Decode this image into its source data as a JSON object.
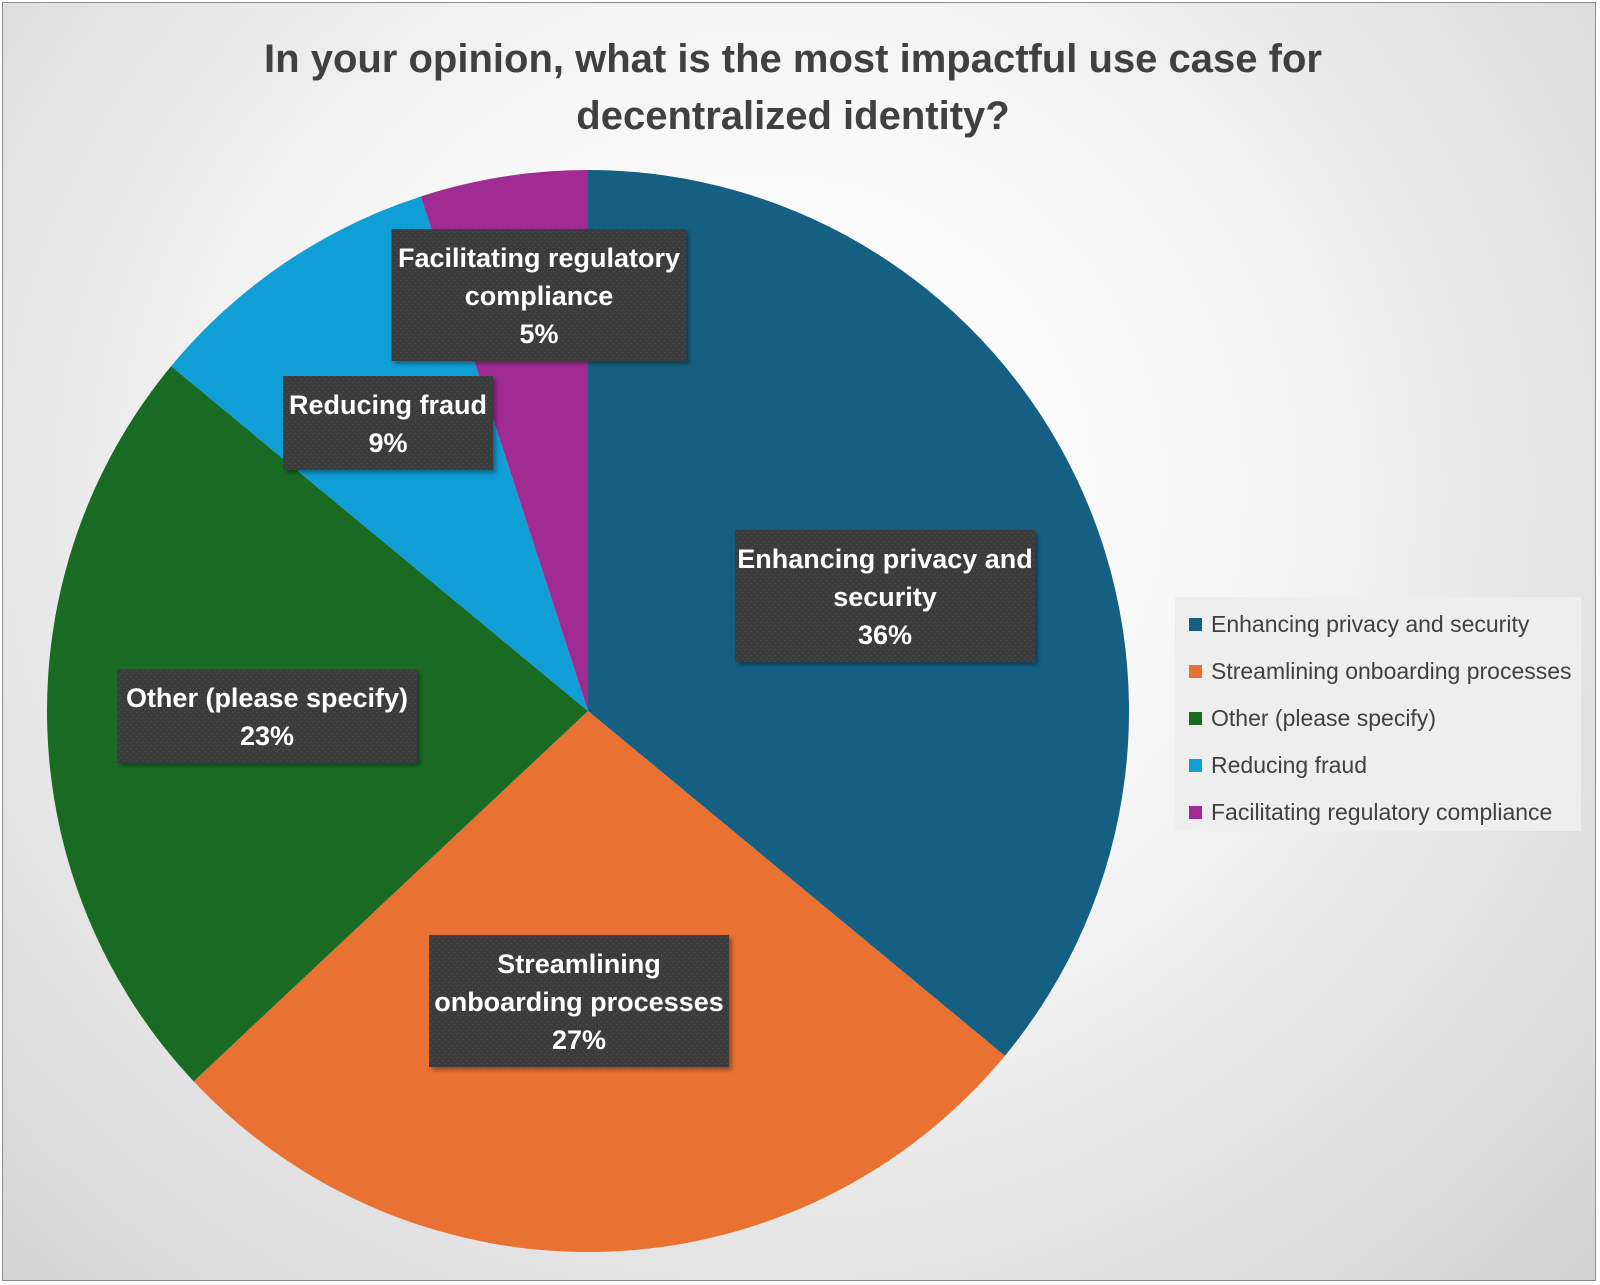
{
  "chart_data": {
    "type": "pie",
    "title": "In your opinion, what is the most impactful use case for decentralized identity?",
    "title_lines": [
      "In your opinion, what is the most impactful use case for",
      "decentralized identity?"
    ],
    "slices": [
      {
        "name": "Enhancing privacy and security",
        "value": 36,
        "label_lines": [
          "Enhancing privacy and",
          "security",
          "36%"
        ],
        "color": "#156082"
      },
      {
        "name": "Streamlining onboarding processes",
        "value": 27,
        "label_lines": [
          "Streamlining",
          "onboarding processes",
          "27%"
        ],
        "color": "#E97132"
      },
      {
        "name": "Other (please specify)",
        "value": 23,
        "label_lines": [
          "Other (please specify)",
          "23%"
        ],
        "color": "#196B24"
      },
      {
        "name": "Reducing fraud",
        "value": 9,
        "label_lines": [
          "Reducing fraud",
          "9%"
        ],
        "color": "#0F9ED5"
      },
      {
        "name": "Facilitating regulatory compliance",
        "value": 5,
        "label_lines": [
          "Facilitating regulatory",
          "compliance",
          "5%"
        ],
        "color": "#A02B93"
      }
    ],
    "start_angle_deg": 0,
    "direction": "clockwise",
    "data_labels": "inside, dark boxes",
    "legend_position": "right"
  }
}
